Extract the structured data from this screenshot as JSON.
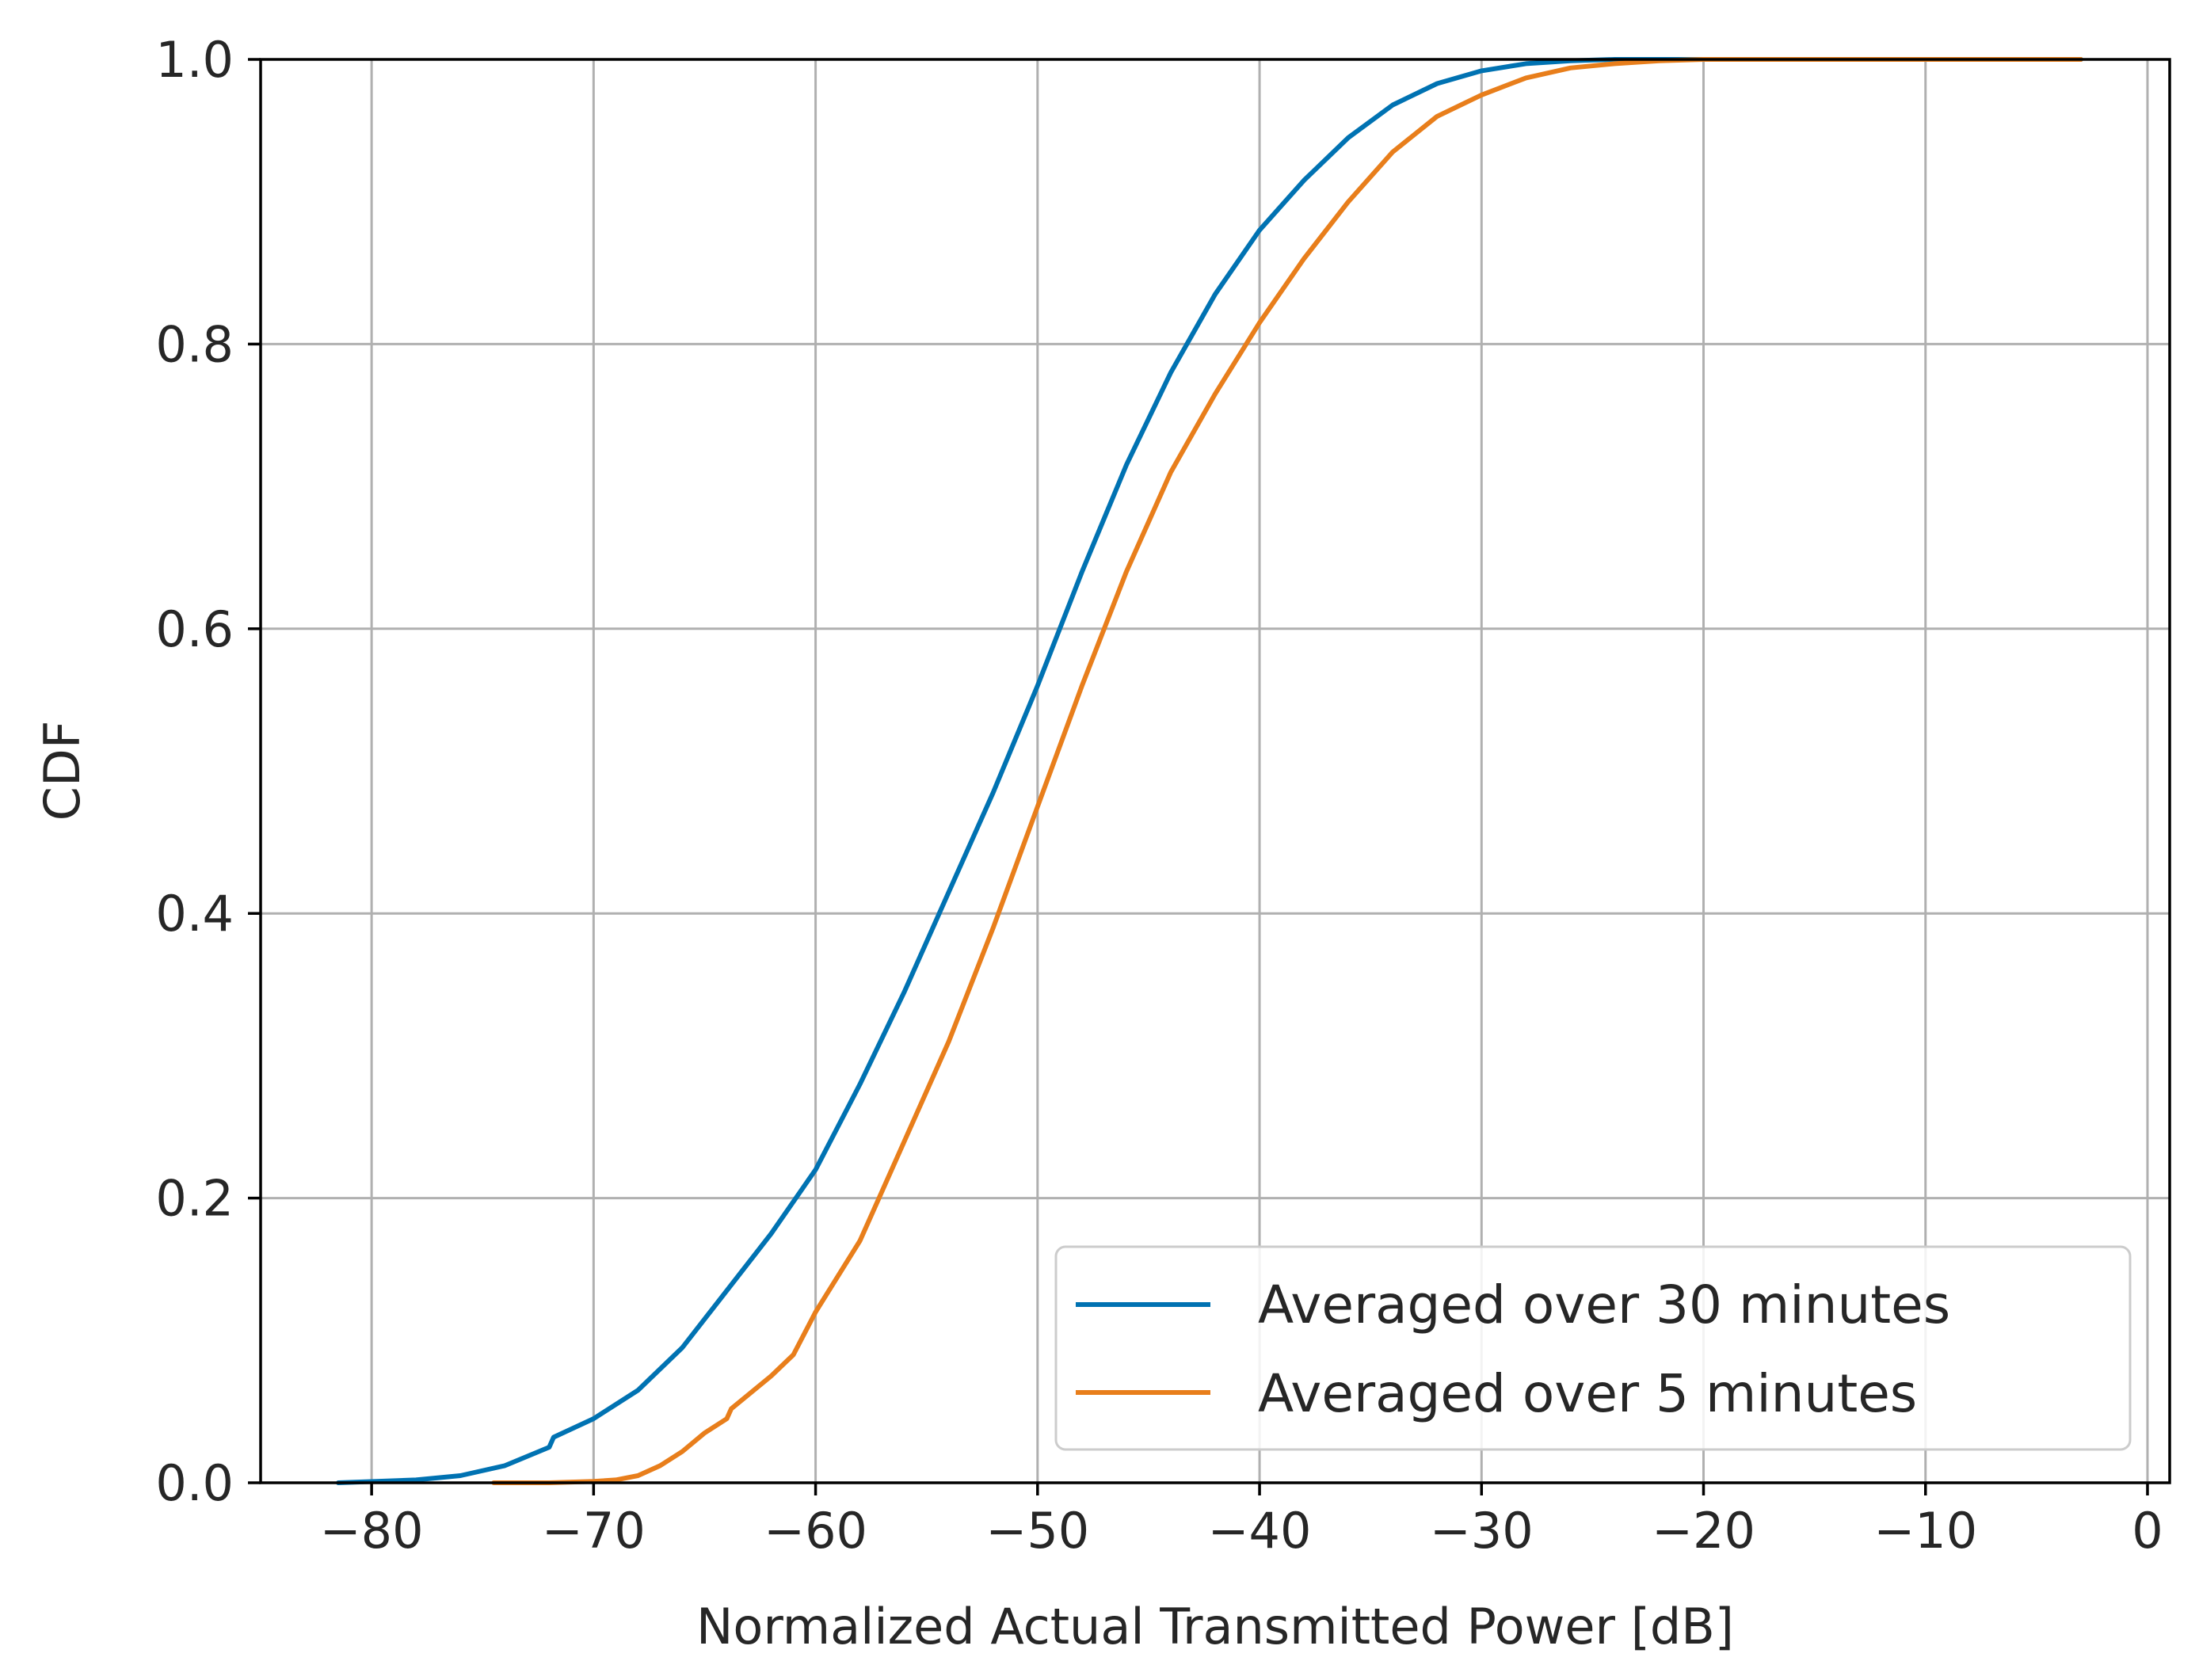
{
  "chart_data": {
    "type": "line",
    "title": "",
    "xlabel": "Normalized Actual Transmitted Power [dB]",
    "ylabel": "CDF",
    "xlim": [
      -85,
      1
    ],
    "ylim": [
      0,
      1
    ],
    "xticks": [
      -80,
      -70,
      -60,
      -50,
      -40,
      -30,
      -20,
      -10,
      0
    ],
    "xtick_labels": [
      "−80",
      "−70",
      "−60",
      "−50",
      "−40",
      "−30",
      "−20",
      "−10",
      "0"
    ],
    "yticks": [
      0,
      0.2,
      0.4,
      0.6,
      0.8,
      1.0
    ],
    "ytick_labels": [
      "0.0",
      "0.2",
      "0.4",
      "0.6",
      "0.8",
      "1.0"
    ],
    "grid": true,
    "legend_position": "lower-right",
    "series": [
      {
        "name": "Averaged over 30 minutes",
        "color": "#0072B2",
        "x": [
          -81.5,
          -78,
          -76,
          -74,
          -72,
          -71.8,
          -70,
          -68,
          -66,
          -64,
          -62,
          -60,
          -58,
          -56,
          -54,
          -52,
          -50,
          -48,
          -46,
          -44,
          -42,
          -40,
          -38,
          -36,
          -34,
          -32,
          -30,
          -28,
          -26,
          -24,
          -22,
          -20,
          -15,
          -10,
          -3
        ],
        "y": [
          0.0,
          0.002,
          0.005,
          0.012,
          0.025,
          0.032,
          0.045,
          0.065,
          0.095,
          0.135,
          0.175,
          0.22,
          0.28,
          0.345,
          0.415,
          0.485,
          0.56,
          0.64,
          0.715,
          0.78,
          0.835,
          0.88,
          0.915,
          0.945,
          0.968,
          0.983,
          0.992,
          0.997,
          0.999,
          1.0,
          1.0,
          1.0,
          1.0,
          1.0,
          1.0
        ]
      },
      {
        "name": "Averaged over 5 minutes",
        "color": "#E87E1B",
        "x": [
          -74.5,
          -72,
          -70,
          -69,
          -68,
          -67,
          -66,
          -65,
          -64,
          -63.8,
          -62,
          -61,
          -60,
          -58,
          -56,
          -54,
          -52,
          -50,
          -48,
          -46,
          -44,
          -42,
          -40,
          -38,
          -36,
          -34,
          -32,
          -30,
          -28,
          -26,
          -24,
          -22,
          -20,
          -15,
          -10,
          -3
        ],
        "y": [
          0.0,
          0.0,
          0.001,
          0.002,
          0.005,
          0.012,
          0.022,
          0.035,
          0.045,
          0.052,
          0.075,
          0.09,
          0.12,
          0.17,
          0.24,
          0.31,
          0.39,
          0.475,
          0.56,
          0.64,
          0.71,
          0.765,
          0.815,
          0.86,
          0.9,
          0.935,
          0.96,
          0.975,
          0.987,
          0.994,
          0.997,
          0.999,
          1.0,
          1.0,
          1.0,
          1.0
        ]
      }
    ]
  }
}
